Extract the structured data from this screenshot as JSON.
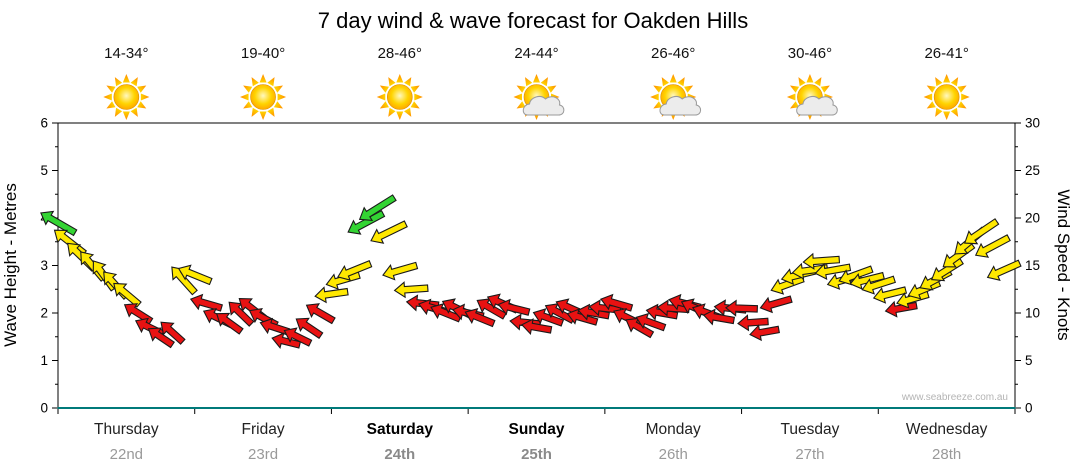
{
  "title": "7 day wind & wave forecast for Oakden Hills",
  "watermark": "www.seabreeze.com.au",
  "days": [
    {
      "name": "Thursday",
      "date": "22nd",
      "temp": "14-34°",
      "icon": "sunny",
      "bold": false
    },
    {
      "name": "Friday",
      "date": "23rd",
      "temp": "19-40°",
      "icon": "sunny",
      "bold": false
    },
    {
      "name": "Saturday",
      "date": "24th",
      "temp": "28-46°",
      "icon": "sunny",
      "bold": true
    },
    {
      "name": "Sunday",
      "date": "25th",
      "temp": "24-44°",
      "icon": "partly-cloudy",
      "bold": true
    },
    {
      "name": "Monday",
      "date": "26th",
      "temp": "26-46°",
      "icon": "partly-cloudy",
      "bold": false
    },
    {
      "name": "Tuesday",
      "date": "27th",
      "temp": "30-46°",
      "icon": "partly-cloudy",
      "bold": false
    },
    {
      "name": "Wednesday",
      "date": "28th",
      "temp": "26-41°",
      "icon": "sunny",
      "bold": false
    }
  ],
  "axes": {
    "left_label": "Wave Height - Metres",
    "left_ticks": [
      0,
      1,
      2,
      3,
      4,
      5,
      6
    ],
    "left_range": [
      0,
      6
    ],
    "right_label": "Wind Speed - Knots",
    "right_ticks": [
      0,
      5,
      10,
      15,
      20,
      25,
      30
    ],
    "right_range": [
      0,
      30
    ]
  },
  "chart_data": {
    "type": "scatter",
    "title": "7 day wind & wave forecast for Oakden Hills",
    "x_days": [
      "Thursday 22nd",
      "Friday 23rd",
      "Saturday 24th",
      "Sunday 25th",
      "Monday 26th",
      "Tuesday 27th",
      "Wednesday 28th"
    ],
    "y_left": {
      "label": "Wave Height - Metres",
      "range": [
        0,
        6
      ]
    },
    "y_right": {
      "label": "Wind Speed - Knots",
      "range": [
        0,
        30
      ]
    },
    "units": "knots",
    "sample_interval_hours": 2,
    "color_thresholds": {
      "green_min_kt": 19,
      "yellow_min_kt": 11.5
    },
    "arrow_colors": {
      "red": "#e81212",
      "yellow": "#ffe800",
      "green": "#33d433"
    },
    "wind": [
      {
        "day": "Thursday",
        "speeds_kt": [
          19.5,
          17.5,
          16,
          15,
          14,
          13,
          12,
          10,
          8.5,
          7.5,
          8,
          13.5
        ],
        "dirs_deg": [
          210,
          218,
          224,
          230,
          234,
          228,
          220,
          212,
          206,
          214,
          222,
          228
        ]
      },
      {
        "day": "Friday",
        "speeds_kt": [
          14,
          11,
          9.5,
          9,
          10,
          10.5,
          9.5,
          8.5,
          7,
          7.5,
          8.5,
          10
        ],
        "dirs_deg": [
          202,
          196,
          206,
          216,
          224,
          218,
          208,
          198,
          194,
          206,
          214,
          210
        ]
      },
      {
        "day": "Saturday",
        "speeds_kt": [
          12,
          13.5,
          14.5,
          19.5,
          21,
          18.5,
          14.5,
          12.5,
          11,
          10.5,
          10,
          10.5
        ],
        "dirs_deg": [
          172,
          164,
          158,
          152,
          148,
          154,
          164,
          176,
          186,
          196,
          202,
          206
        ]
      },
      {
        "day": "Sunday",
        "speeds_kt": [
          10,
          9.5,
          10.5,
          11,
          10.5,
          9,
          8.5,
          9.5,
          10,
          10.5,
          9.5,
          10
        ],
        "dirs_deg": [
          192,
          202,
          210,
          204,
          194,
          186,
          190,
          200,
          208,
          204,
          196,
          190
        ]
      },
      {
        "day": "Monday",
        "speeds_kt": [
          10.5,
          11,
          9.5,
          8.5,
          9,
          10,
          10.5,
          11,
          10.5,
          10,
          9.5,
          10.5
        ],
        "dirs_deg": [
          186,
          196,
          206,
          210,
          200,
          190,
          184,
          194,
          204,
          200,
          190,
          186
        ]
      },
      {
        "day": "Tuesday",
        "speeds_kt": [
          10.5,
          9,
          8,
          11,
          13,
          14,
          14.5,
          15.5,
          14.5,
          13.5,
          14,
          13.5
        ],
        "dirs_deg": [
          182,
          176,
          170,
          164,
          160,
          166,
          172,
          176,
          170,
          164,
          160,
          166
        ]
      },
      {
        "day": "Wednesday",
        "speeds_kt": [
          13,
          12,
          10.5,
          11.5,
          12.5,
          13.5,
          14.5,
          16,
          17.5,
          18.5,
          17,
          14.5
        ],
        "dirs_deg": [
          162,
          166,
          170,
          164,
          158,
          152,
          148,
          144,
          140,
          146,
          152,
          156
        ]
      }
    ]
  }
}
